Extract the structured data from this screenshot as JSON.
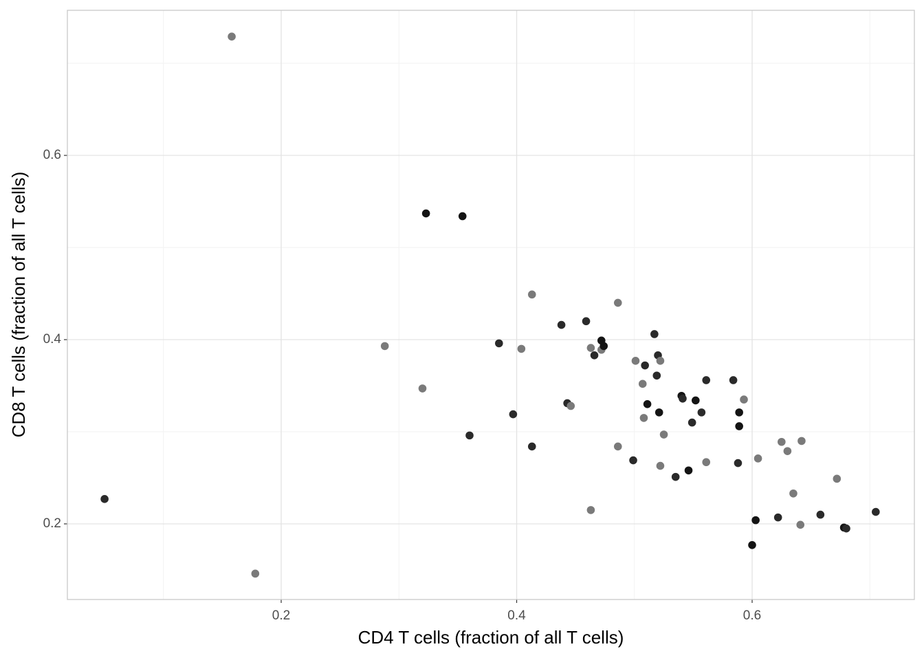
{
  "chart_data": {
    "type": "scatter",
    "x_label": "CD4 T cells (fraction of all T cells)",
    "y_label": "CD8 T cells (fraction of all T cells)",
    "xlim": [
      0.0184,
      0.7378
    ],
    "ylim": [
      0.1179,
      0.7575
    ],
    "xticks": [
      0.2,
      0.4,
      0.6
    ],
    "yticks": [
      0.2,
      0.4,
      0.6
    ],
    "x_minor_grid": [
      0.1,
      0.3,
      0.5,
      0.7
    ],
    "y_minor_grid": [
      0.3,
      0.5,
      0.7
    ],
    "grid": true,
    "x": [
      0.158,
      0.05,
      0.178,
      0.288,
      0.32,
      0.323,
      0.354,
      0.36,
      0.385,
      0.397,
      0.404,
      0.413,
      0.413,
      0.438,
      0.443,
      0.446,
      0.459,
      0.463,
      0.463,
      0.466,
      0.472,
      0.472,
      0.474,
      0.486,
      0.486,
      0.499,
      0.501,
      0.507,
      0.508,
      0.509,
      0.511,
      0.517,
      0.519,
      0.52,
      0.521,
      0.522,
      0.522,
      0.525,
      0.535,
      0.54,
      0.541,
      0.546,
      0.549,
      0.552,
      0.557,
      0.561,
      0.561,
      0.584,
      0.588,
      0.589,
      0.589,
      0.593,
      0.6,
      0.603,
      0.605,
      0.622,
      0.625,
      0.63,
      0.635,
      0.641,
      0.642,
      0.658,
      0.672,
      0.678,
      0.68,
      0.705
    ],
    "values": [
      0.729,
      0.227,
      0.146,
      0.393,
      0.347,
      0.537,
      0.534,
      0.296,
      0.396,
      0.319,
      0.39,
      0.449,
      0.284,
      0.416,
      0.331,
      0.328,
      0.42,
      0.391,
      0.215,
      0.383,
      0.399,
      0.389,
      0.393,
      0.44,
      0.284,
      0.269,
      0.377,
      0.352,
      0.315,
      0.372,
      0.33,
      0.406,
      0.361,
      0.383,
      0.321,
      0.377,
      0.263,
      0.297,
      0.251,
      0.339,
      0.336,
      0.258,
      0.31,
      0.334,
      0.321,
      0.356,
      0.267,
      0.356,
      0.266,
      0.321,
      0.306,
      0.335,
      0.177,
      0.204,
      0.271,
      0.207,
      0.289,
      0.279,
      0.233,
      0.199,
      0.29,
      0.21,
      0.249,
      0.196,
      0.195,
      0.213
    ],
    "colors": [
      "#7a7a7a",
      "#2a2a2a",
      "#7a7a7a",
      "#7a7a7a",
      "#7a7a7a",
      "#141414",
      "#141414",
      "#2a2a2a",
      "#2a2a2a",
      "#2a2a2a",
      "#7a7a7a",
      "#7a7a7a",
      "#2a2a2a",
      "#2a2a2a",
      "#2a2a2a",
      "#7a7a7a",
      "#2a2a2a",
      "#7a7a7a",
      "#7a7a7a",
      "#2a2a2a",
      "#141414",
      "#7a7a7a",
      "#141414",
      "#7a7a7a",
      "#7a7a7a",
      "#2a2a2a",
      "#7a7a7a",
      "#7a7a7a",
      "#7a7a7a",
      "#2a2a2a",
      "#141414",
      "#2a2a2a",
      "#2a2a2a",
      "#2a2a2a",
      "#141414",
      "#7a7a7a",
      "#7a7a7a",
      "#7a7a7a",
      "#2a2a2a",
      "#141414",
      "#2a2a2a",
      "#141414",
      "#2a2a2a",
      "#141414",
      "#2a2a2a",
      "#2a2a2a",
      "#7a7a7a",
      "#2a2a2a",
      "#2a2a2a",
      "#141414",
      "#141414",
      "#7a7a7a",
      "#141414",
      "#141414",
      "#7a7a7a",
      "#2a2a2a",
      "#7a7a7a",
      "#7a7a7a",
      "#7a7a7a",
      "#7a7a7a",
      "#7a7a7a",
      "#2a2a2a",
      "#7a7a7a",
      "#141414",
      "#2a2a2a",
      "#2a2a2a"
    ]
  }
}
